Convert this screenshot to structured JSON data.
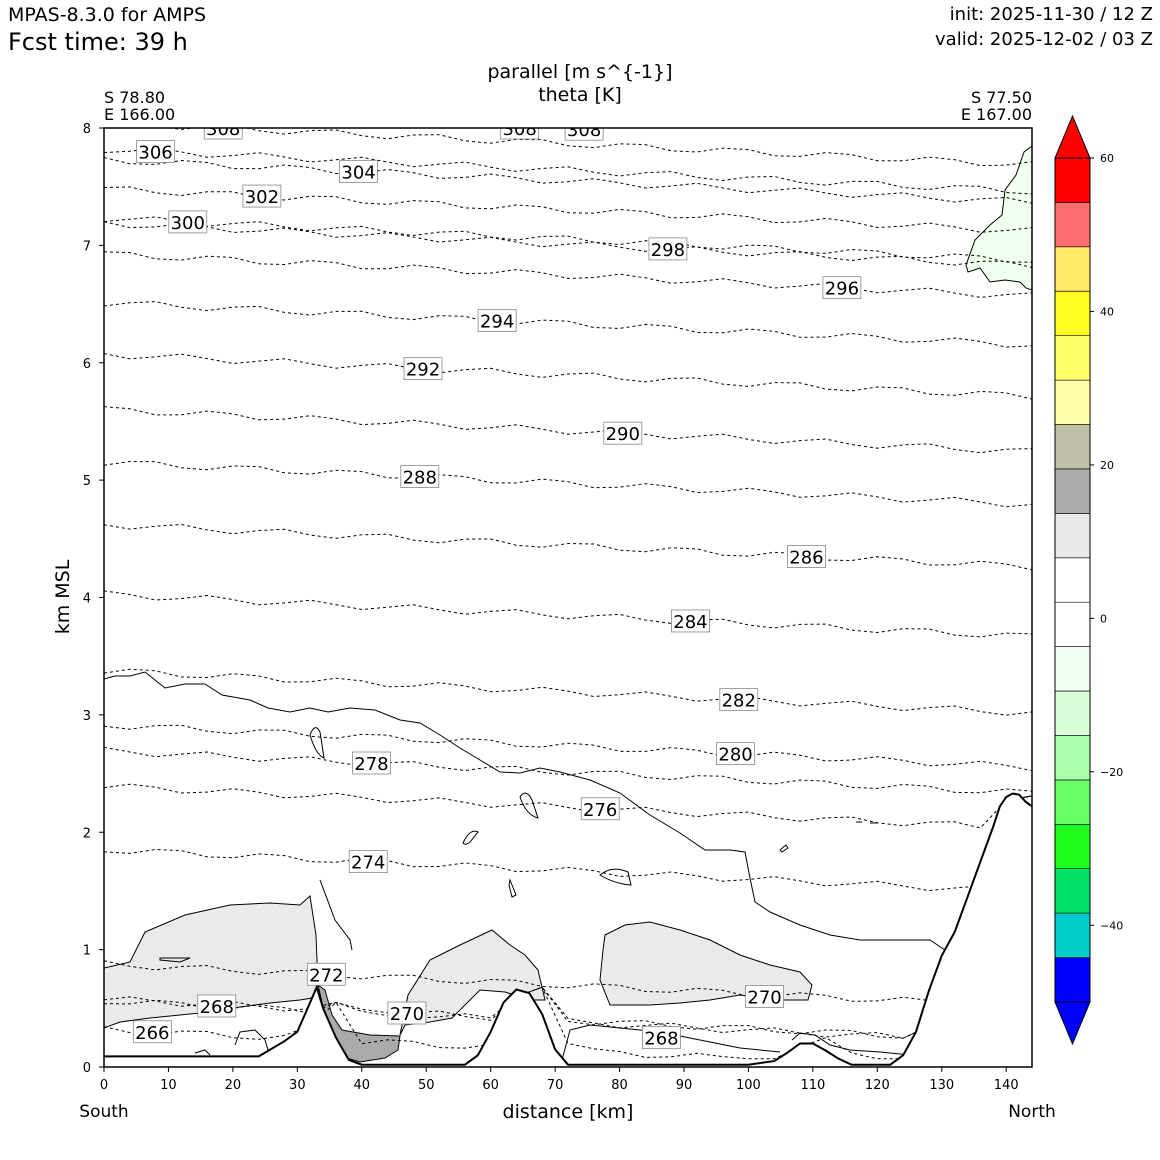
{
  "header": {
    "model": "MPAS-8.3.0 for AMPS",
    "fcst_time": "Fcst time:   39 h",
    "init": "init: 2025-11-30 / 12 Z",
    "valid": "valid: 2025-12-02 / 03 Z"
  },
  "chart_data": {
    "type": "cross-section",
    "title_line1": "parallel [m s^{-1}]",
    "title_line2": "theta [K]",
    "start_point": {
      "lat": "S 78.80",
      "lon": "E 166.00"
    },
    "end_point": {
      "lat": "S 77.50",
      "lon": "E 167.00"
    },
    "xlabel": "distance [km]",
    "ylabel": "km MSL",
    "left_end_label": "South",
    "right_end_label": "North",
    "xlim": [
      0,
      144
    ],
    "ylim": [
      0,
      8
    ],
    "x_ticks": [
      0,
      10,
      20,
      30,
      40,
      50,
      60,
      70,
      80,
      90,
      100,
      110,
      120,
      130,
      140
    ],
    "y_ticks": [
      0,
      1,
      2,
      3,
      4,
      5,
      6,
      7,
      8
    ],
    "terrain": {
      "x": [
        0,
        10,
        20,
        24,
        28,
        30,
        32,
        33,
        34,
        36,
        38,
        40,
        42,
        44,
        46,
        48,
        52,
        56,
        58,
        60,
        62,
        64,
        66,
        68,
        70,
        72,
        74,
        80,
        90,
        100,
        104,
        106,
        108,
        110,
        112,
        114,
        116,
        118,
        120,
        122,
        124,
        126,
        128,
        130,
        132,
        134,
        136,
        138,
        139,
        140,
        141,
        142,
        143,
        144
      ],
      "y": [
        0.09,
        0.09,
        0.09,
        0.09,
        0.22,
        0.3,
        0.55,
        0.68,
        0.5,
        0.25,
        0.06,
        0.02,
        0.02,
        0.02,
        0.02,
        0.02,
        0.02,
        0.02,
        0.1,
        0.3,
        0.55,
        0.66,
        0.63,
        0.45,
        0.15,
        0.02,
        0.02,
        0.02,
        0.02,
        0.02,
        0.05,
        0.12,
        0.2,
        0.2,
        0.14,
        0.07,
        0.02,
        0.02,
        0.02,
        0.02,
        0.1,
        0.3,
        0.65,
        0.95,
        1.15,
        1.45,
        1.75,
        2.05,
        2.22,
        2.3,
        2.33,
        2.32,
        2.26,
        2.22
      ]
    },
    "theta_labels": [
      {
        "value": "308",
        "x": 18.5,
        "y": 8.0
      },
      {
        "value": "308",
        "x": 64.5,
        "y": 8.0
      },
      {
        "value": "308",
        "x": 74.5,
        "y": 7.99
      },
      {
        "value": "306",
        "x": 8,
        "y": 7.8
      },
      {
        "value": "304",
        "x": 39.5,
        "y": 7.63
      },
      {
        "value": "302",
        "x": 24.5,
        "y": 7.42
      },
      {
        "value": "300",
        "x": 13,
        "y": 7.2
      },
      {
        "value": "298",
        "x": 87.5,
        "y": 6.97
      },
      {
        "value": "296",
        "x": 114.5,
        "y": 6.64
      },
      {
        "value": "294",
        "x": 61,
        "y": 6.36
      },
      {
        "value": "292",
        "x": 49.5,
        "y": 5.95
      },
      {
        "value": "290",
        "x": 80.5,
        "y": 5.4
      },
      {
        "value": "288",
        "x": 49,
        "y": 5.03
      },
      {
        "value": "286",
        "x": 109,
        "y": 4.35
      },
      {
        "value": "284",
        "x": 91,
        "y": 3.8
      },
      {
        "value": "282",
        "x": 98.5,
        "y": 3.13
      },
      {
        "value": "280",
        "x": 98,
        "y": 2.67
      },
      {
        "value": "278",
        "x": 41.5,
        "y": 2.59
      },
      {
        "value": "276",
        "x": 77,
        "y": 2.2
      },
      {
        "value": "274",
        "x": 41,
        "y": 1.75
      },
      {
        "value": "272",
        "x": 34.5,
        "y": 0.79
      },
      {
        "value": "270",
        "x": 47,
        "y": 0.46
      },
      {
        "value": "270",
        "x": 102.5,
        "y": 0.6
      },
      {
        "value": "268",
        "x": 17.5,
        "y": 0.52
      },
      {
        "value": "268",
        "x": 86.5,
        "y": 0.25
      },
      {
        "value": "266",
        "x": 7.5,
        "y": 0.3
      }
    ],
    "colorbar": {
      "levels": [
        -55,
        -50,
        -45,
        -40,
        -35,
        -30,
        -25,
        -20,
        -15,
        -10,
        -5,
        0,
        5,
        10,
        15,
        20,
        25,
        30,
        35,
        40,
        45,
        50,
        55,
        60
      ],
      "colors": [
        "#0000ff",
        "#00cccc",
        "#00e066",
        "#1eff1e",
        "#66ff66",
        "#aaffaa",
        "#d9ffd9",
        "#f0fff0",
        "#ffffff",
        "#ffffff",
        "#e8e8e8",
        "#aaaaaa",
        "#c0c0a8",
        "#ffffaa",
        "#ffff66",
        "#ffff22",
        "#ffe866",
        "#ff6e6e",
        "#ff0000"
      ],
      "extend": "both",
      "ticks": [
        60,
        40,
        20,
        0,
        -20,
        -40
      ],
      "tick_labels": [
        "60",
        "40",
        "20",
        "0",
        "−20",
        "−40"
      ]
    }
  }
}
